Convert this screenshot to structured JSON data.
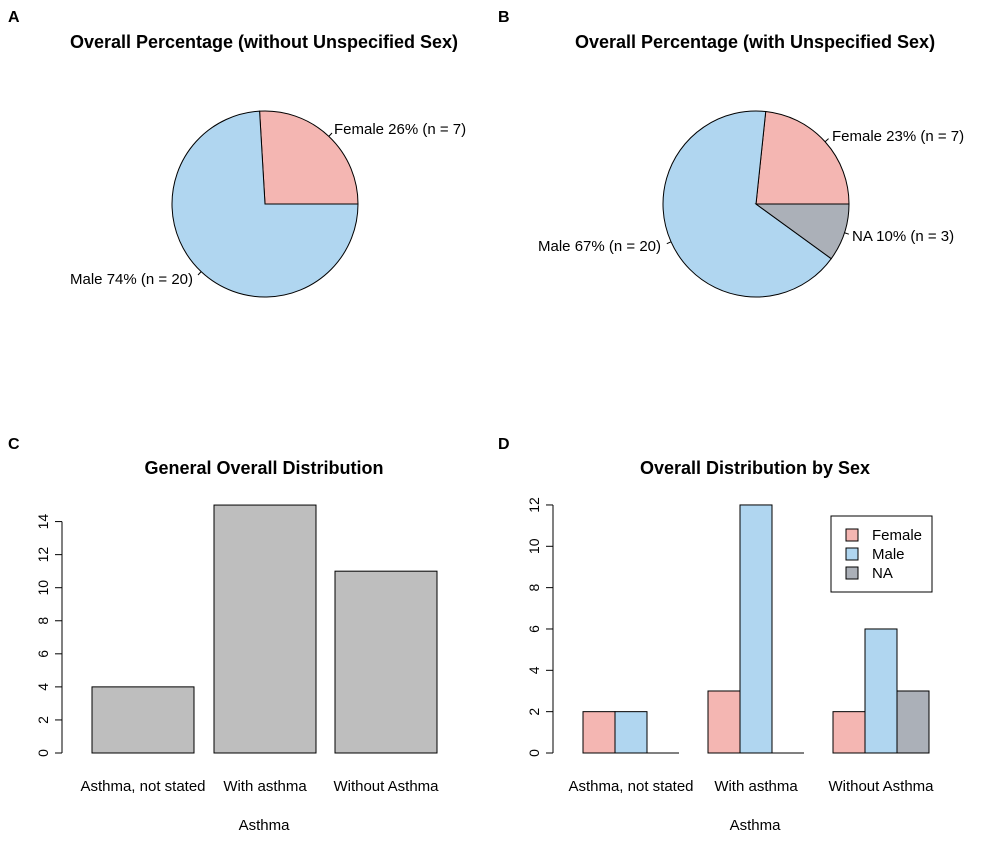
{
  "panels": [
    {
      "letter": "A",
      "title": "Overall Percentage (without Unspecified Sex)"
    },
    {
      "letter": "B",
      "title": "Overall Percentage (with Unspecified Sex)"
    },
    {
      "letter": "C",
      "title": "General Overall Distribution"
    },
    {
      "letter": "D",
      "title": "Overall Distribution by Sex"
    }
  ],
  "colors": {
    "female": "#F4B6B2",
    "male": "#B0D6F0",
    "na": "#ABB0B8",
    "bar": "#BEBEBE"
  },
  "chart_data": [
    {
      "type": "pie",
      "panel": "A",
      "title": "Overall Percentage (without Unspecified Sex)",
      "slices": [
        {
          "name": "Female",
          "value": 7,
          "label": "Female 26% (n = 7)",
          "color": "#F4B6B2"
        },
        {
          "name": "Male",
          "value": 20,
          "label": "Male 74% (n = 20)",
          "color": "#B0D6F0"
        }
      ]
    },
    {
      "type": "pie",
      "panel": "B",
      "title": "Overall Percentage (with Unspecified Sex)",
      "slices": [
        {
          "name": "Female",
          "value": 7,
          "label": "Female 23% (n = 7)",
          "color": "#F4B6B2"
        },
        {
          "name": "Male",
          "value": 20,
          "label": "Male 67% (n = 20)",
          "color": "#B0D6F0"
        },
        {
          "name": "NA",
          "value": 3,
          "label": "NA 10% (n = 3)",
          "color": "#ABB0B8"
        }
      ]
    },
    {
      "type": "bar",
      "panel": "C",
      "title": "General Overall Distribution",
      "xlabel": "Asthma",
      "ylabel": "",
      "categories": [
        "Asthma, not stated",
        "With asthma",
        "Without Asthma"
      ],
      "values": [
        4,
        15,
        11
      ],
      "yticks": [
        0,
        2,
        4,
        6,
        8,
        10,
        12,
        14
      ],
      "ylim": [
        0,
        15
      ]
    },
    {
      "type": "bar",
      "panel": "D",
      "title": "Overall Distribution by Sex",
      "xlabel": "Asthma",
      "ylabel": "",
      "categories": [
        "Asthma, not stated",
        "With asthma",
        "Without Asthma"
      ],
      "series": [
        {
          "name": "Female",
          "values": [
            2,
            3,
            2
          ],
          "color": "#F4B6B2"
        },
        {
          "name": "Male",
          "values": [
            2,
            12,
            6
          ],
          "color": "#B0D6F0"
        },
        {
          "name": "NA",
          "values": [
            0,
            0,
            3
          ],
          "color": "#ABB0B8"
        }
      ],
      "yticks": [
        0,
        2,
        4,
        6,
        8,
        10,
        12
      ],
      "ylim": [
        0,
        12
      ],
      "legend": {
        "position": "top-right",
        "entries": [
          "Female",
          "Male",
          "NA"
        ]
      }
    }
  ]
}
